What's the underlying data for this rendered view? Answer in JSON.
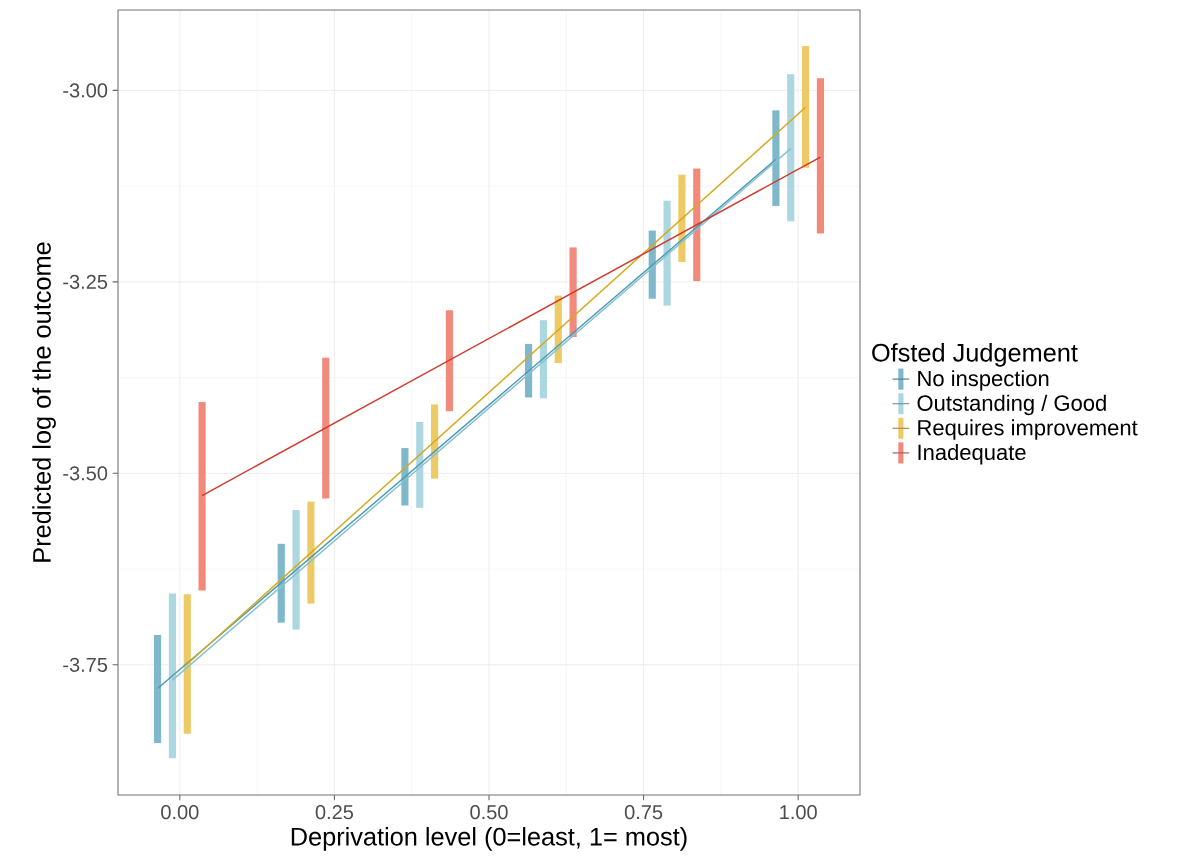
{
  "chart_data": {
    "type": "bar",
    "xlabel": "Deprivation level (0=least, 1= most)",
    "ylabel": "Predicted log of the outcome",
    "legend_title": "Ofsted Judgement",
    "legend": "right",
    "grid": true,
    "xlim": [
      -0.1,
      1.1
    ],
    "ylim": [
      -3.92,
      -2.895
    ],
    "xticks": [
      {
        "value": 0,
        "label": "0.00"
      },
      {
        "value": 0.25,
        "label": "0.25"
      },
      {
        "value": 0.5,
        "label": "0.50"
      },
      {
        "value": 0.75,
        "label": "0.75"
      },
      {
        "value": 1,
        "label": "1.00"
      }
    ],
    "yticks": [
      {
        "value": -3.75,
        "label": "-3.75"
      },
      {
        "value": -3.5,
        "label": "-3.50"
      },
      {
        "value": -3.25,
        "label": "-3.25"
      },
      {
        "value": -3,
        "label": "-3.00"
      }
    ],
    "series": [
      {
        "name": "No inspection",
        "color": "#7fb8ca",
        "x": [
          -0.036,
          0.164,
          0.364,
          0.564,
          0.764,
          0.964
        ],
        "base": [
          -3.852,
          -3.695,
          -3.542,
          -3.401,
          -3.272,
          -3.151
        ],
        "values": [
          0.141,
          0.103,
          0.075,
          0.07,
          0.089,
          0.125
        ]
      },
      {
        "name": "Outstanding / Good",
        "color": "#acd6e0",
        "x": [
          -0.012,
          0.188,
          0.388,
          0.588,
          0.788,
          0.988
        ],
        "base": [
          -3.872,
          -3.704,
          -3.545,
          -3.402,
          -3.281,
          -3.171
        ],
        "values": [
          0.215,
          0.156,
          0.112,
          0.102,
          0.137,
          0.192
        ]
      },
      {
        "name": "Requires improvement",
        "color": "#edca66",
        "x": [
          0.012,
          0.212,
          0.412,
          0.612,
          0.812,
          1.012
        ],
        "base": [
          -3.84,
          -3.67,
          -3.507,
          -3.356,
          -3.224,
          -3.101
        ],
        "values": [
          0.182,
          0.133,
          0.097,
          0.088,
          0.114,
          0.159
        ]
      },
      {
        "name": "Inadequate",
        "color": "#f28a7c",
        "x": [
          0.036,
          0.236,
          0.436,
          0.636,
          0.836,
          1.036
        ],
        "base": [
          -3.653,
          -3.533,
          -3.419,
          -3.322,
          -3.249,
          -3.187
        ],
        "values": [
          0.246,
          0.184,
          0.132,
          0.117,
          0.147,
          0.203
        ]
      },
      {
        "type": "line",
        "color": "#4e9bb5",
        "x": [
          -0.036,
          0.964
        ],
        "values": [
          -3.781,
          -3.09
        ]
      },
      {
        "type": "line",
        "color": "#86c2d2",
        "x": [
          -0.012,
          0.988
        ],
        "values": [
          -3.77,
          -3.076
        ]
      },
      {
        "type": "line",
        "color": "#d4aa1c",
        "x": [
          0.012,
          1.012
        ],
        "values": [
          -3.749,
          -3.022
        ]
      },
      {
        "type": "line",
        "color": "#d0392b",
        "x": [
          0.036,
          1.036
        ],
        "values": [
          -3.529,
          -3.087
        ]
      }
    ]
  }
}
